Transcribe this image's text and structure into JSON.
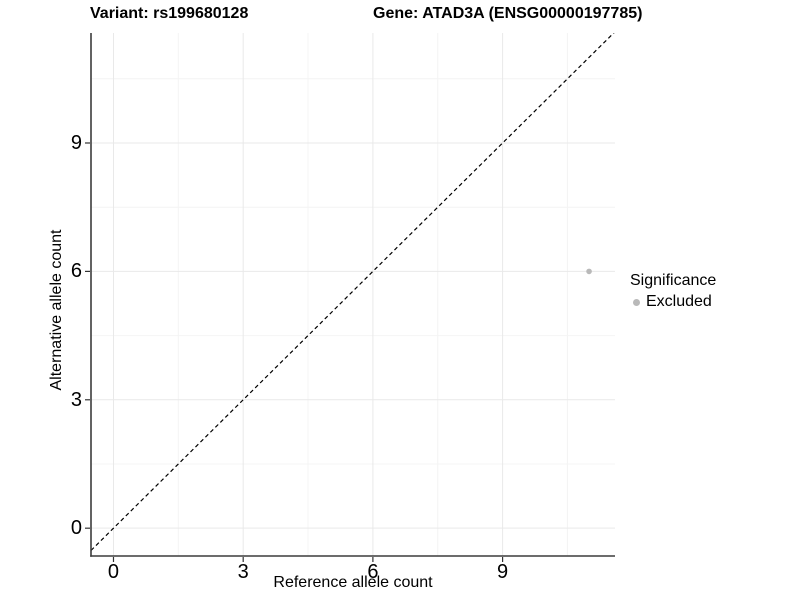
{
  "title": {
    "variant": "Variant: rs199680128",
    "gene": "Gene: ATAD3A (ENSG00000197785)"
  },
  "axes": {
    "x": {
      "label": "Reference allele count",
      "ticks": [
        0,
        3,
        6,
        9
      ],
      "minor_ticks": [
        1.5,
        4.5,
        7.5,
        10.5
      ],
      "range": [
        -0.52,
        11.6
      ]
    },
    "y": {
      "label": "Alternative allele count",
      "ticks": [
        0,
        3,
        6,
        9
      ],
      "minor_ticks": [
        1.5,
        4.5,
        7.5,
        10.5
      ],
      "range": [
        -0.65,
        11.57
      ]
    }
  },
  "legend": {
    "title": "Significance",
    "items": [
      {
        "label": "Excluded",
        "color": "#b9b9b9"
      }
    ]
  },
  "chart_data": {
    "type": "scatter",
    "title": "Variant: rs199680128   Gene: ATAD3A (ENSG00000197785)",
    "xlabel": "Reference allele count",
    "ylabel": "Alternative allele count",
    "xlim": [
      -0.52,
      11.6
    ],
    "ylim": [
      -0.65,
      11.57
    ],
    "x_ticks": [
      0,
      3,
      6,
      9
    ],
    "y_ticks": [
      0,
      3,
      6,
      9
    ],
    "grid": true,
    "legend_position": "right",
    "legend_title": "Significance",
    "series": [
      {
        "name": "Excluded",
        "color": "#b9b9b9",
        "points": [
          {
            "x": 11,
            "y": 6
          }
        ]
      }
    ],
    "reference_line": {
      "type": "identity",
      "slope": 1,
      "intercept": 0,
      "style": "dashed",
      "color": "#000000"
    }
  },
  "colors": {
    "background": "#ffffff",
    "grid_major": "#e9e9e9",
    "grid_minor": "#f4f4f4",
    "axis_line": "#3c3c3c",
    "tick_mark": "#333333",
    "text": "#000000",
    "reference_line": "#000000"
  }
}
